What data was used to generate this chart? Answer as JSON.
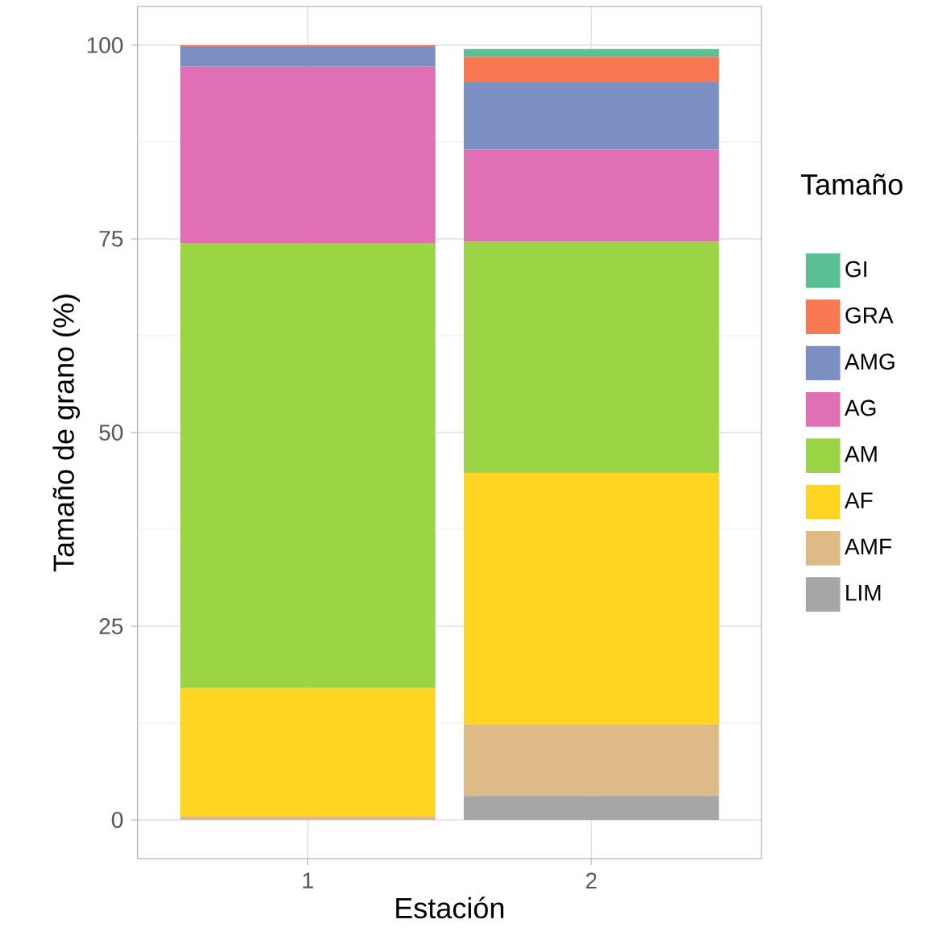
{
  "chart_data": {
    "type": "bar",
    "stacked": true,
    "xlabel": "Estación",
    "ylabel": "Tamaño de grano (%)",
    "legend_title": "Tamaño",
    "categories": [
      "1",
      "2"
    ],
    "series": [
      {
        "name": "LIM",
        "color": "#a6a6a6",
        "values": [
          0,
          3.1
        ]
      },
      {
        "name": "AMF",
        "color": "#debb86",
        "values": [
          0.5,
          9.2
        ]
      },
      {
        "name": "AF",
        "color": "#ffd422",
        "values": [
          16.5,
          32.5
        ]
      },
      {
        "name": "AM",
        "color": "#9bd546",
        "values": [
          57.4,
          29.8
        ]
      },
      {
        "name": "AG",
        "color": "#e070b4",
        "values": [
          22.8,
          11.9
        ]
      },
      {
        "name": "AMG",
        "color": "#7b8fc2",
        "values": [
          2.6,
          8.7
        ]
      },
      {
        "name": "GRA",
        "color": "#f87851",
        "values": [
          0.2,
          3.3
        ]
      },
      {
        "name": "GI",
        "color": "#5bbf94",
        "values": [
          0,
          1.0
        ]
      }
    ],
    "ylim": [
      -5,
      105
    ],
    "yticks": [
      0,
      25,
      50,
      75,
      100
    ],
    "grid": true,
    "legend": "right"
  }
}
